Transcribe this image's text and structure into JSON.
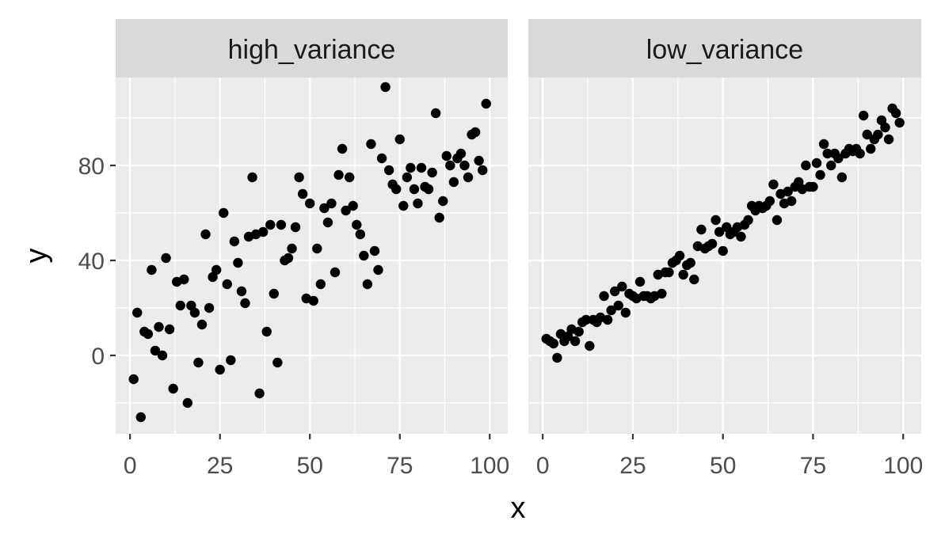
{
  "chart_data": {
    "type": "scatter",
    "xlabel": "x",
    "ylabel": "y",
    "xlim": [
      -4,
      105
    ],
    "ylim": [
      -33,
      117
    ],
    "x_ticks": [
      0,
      25,
      50,
      75,
      100
    ],
    "y_ticks": [
      0,
      40,
      80
    ],
    "grid": true,
    "legend": "none",
    "panel_background": "#ebebeb",
    "strip_background": "#d9d9d9",
    "point_color": "#000000",
    "facets": [
      {
        "strip_label": "high_variance",
        "points": [
          {
            "x": 1,
            "y": -10
          },
          {
            "x": 2,
            "y": 18
          },
          {
            "x": 3,
            "y": -26
          },
          {
            "x": 4,
            "y": 10
          },
          {
            "x": 5,
            "y": 9
          },
          {
            "x": 6,
            "y": 36
          },
          {
            "x": 7,
            "y": 2
          },
          {
            "x": 8,
            "y": 12
          },
          {
            "x": 9,
            "y": 0
          },
          {
            "x": 10,
            "y": 41
          },
          {
            "x": 11,
            "y": 11
          },
          {
            "x": 12,
            "y": -14
          },
          {
            "x": 13,
            "y": 31
          },
          {
            "x": 14,
            "y": 21
          },
          {
            "x": 15,
            "y": 32
          },
          {
            "x": 16,
            "y": -20
          },
          {
            "x": 17,
            "y": 21
          },
          {
            "x": 18,
            "y": 18
          },
          {
            "x": 19,
            "y": -3
          },
          {
            "x": 20,
            "y": 13
          },
          {
            "x": 21,
            "y": 51
          },
          {
            "x": 22,
            "y": 20
          },
          {
            "x": 23,
            "y": 33
          },
          {
            "x": 24,
            "y": 36
          },
          {
            "x": 25,
            "y": -6
          },
          {
            "x": 26,
            "y": 60
          },
          {
            "x": 27,
            "y": 30
          },
          {
            "x": 28,
            "y": -2
          },
          {
            "x": 29,
            "y": 48
          },
          {
            "x": 30,
            "y": 39
          },
          {
            "x": 31,
            "y": 27
          },
          {
            "x": 32,
            "y": 22
          },
          {
            "x": 33,
            "y": 50
          },
          {
            "x": 34,
            "y": 75
          },
          {
            "x": 35,
            "y": 51
          },
          {
            "x": 36,
            "y": -16
          },
          {
            "x": 37,
            "y": 52
          },
          {
            "x": 38,
            "y": 10
          },
          {
            "x": 39,
            "y": 55
          },
          {
            "x": 40,
            "y": 26
          },
          {
            "x": 41,
            "y": -3
          },
          {
            "x": 42,
            "y": 55
          },
          {
            "x": 43,
            "y": 40
          },
          {
            "x": 44,
            "y": 41
          },
          {
            "x": 45,
            "y": 45
          },
          {
            "x": 46,
            "y": 54
          },
          {
            "x": 47,
            "y": 75
          },
          {
            "x": 48,
            "y": 68
          },
          {
            "x": 49,
            "y": 24
          },
          {
            "x": 50,
            "y": 64
          },
          {
            "x": 51,
            "y": 23
          },
          {
            "x": 52,
            "y": 45
          },
          {
            "x": 53,
            "y": 30
          },
          {
            "x": 54,
            "y": 62
          },
          {
            "x": 55,
            "y": 56
          },
          {
            "x": 56,
            "y": 64
          },
          {
            "x": 57,
            "y": 35
          },
          {
            "x": 58,
            "y": 76
          },
          {
            "x": 59,
            "y": 87
          },
          {
            "x": 60,
            "y": 61
          },
          {
            "x": 61,
            "y": 75
          },
          {
            "x": 62,
            "y": 63
          },
          {
            "x": 63,
            "y": 55
          },
          {
            "x": 64,
            "y": 51
          },
          {
            "x": 65,
            "y": 42
          },
          {
            "x": 66,
            "y": 30
          },
          {
            "x": 67,
            "y": 89
          },
          {
            "x": 68,
            "y": 44
          },
          {
            "x": 69,
            "y": 36
          },
          {
            "x": 70,
            "y": 83
          },
          {
            "x": 71,
            "y": 113
          },
          {
            "x": 72,
            "y": 78
          },
          {
            "x": 73,
            "y": 72
          },
          {
            "x": 74,
            "y": 70
          },
          {
            "x": 75,
            "y": 91
          },
          {
            "x": 76,
            "y": 63
          },
          {
            "x": 77,
            "y": 75
          },
          {
            "x": 78,
            "y": 79
          },
          {
            "x": 79,
            "y": 70
          },
          {
            "x": 80,
            "y": 64
          },
          {
            "x": 81,
            "y": 79
          },
          {
            "x": 82,
            "y": 71
          },
          {
            "x": 83,
            "y": 70
          },
          {
            "x": 84,
            "y": 77
          },
          {
            "x": 85,
            "y": 102
          },
          {
            "x": 86,
            "y": 58
          },
          {
            "x": 87,
            "y": 65
          },
          {
            "x": 88,
            "y": 84
          },
          {
            "x": 89,
            "y": 80
          },
          {
            "x": 90,
            "y": 73
          },
          {
            "x": 91,
            "y": 83
          },
          {
            "x": 92,
            "y": 85
          },
          {
            "x": 93,
            "y": 80
          },
          {
            "x": 94,
            "y": 75
          },
          {
            "x": 95,
            "y": 93
          },
          {
            "x": 96,
            "y": 94
          },
          {
            "x": 97,
            "y": 82
          },
          {
            "x": 98,
            "y": 78
          },
          {
            "x": 99,
            "y": 106
          }
        ]
      },
      {
        "strip_label": "low_variance",
        "points": [
          {
            "x": 1,
            "y": 7
          },
          {
            "x": 2,
            "y": 6
          },
          {
            "x": 3,
            "y": 5
          },
          {
            "x": 4,
            "y": -1
          },
          {
            "x": 5,
            "y": 9
          },
          {
            "x": 6,
            "y": 6
          },
          {
            "x": 7,
            "y": 8
          },
          {
            "x": 8,
            "y": 11
          },
          {
            "x": 9,
            "y": 6
          },
          {
            "x": 10,
            "y": 10
          },
          {
            "x": 11,
            "y": 14
          },
          {
            "x": 12,
            "y": 15
          },
          {
            "x": 13,
            "y": 4
          },
          {
            "x": 14,
            "y": 15
          },
          {
            "x": 15,
            "y": 14
          },
          {
            "x": 16,
            "y": 16
          },
          {
            "x": 17,
            "y": 25
          },
          {
            "x": 18,
            "y": 15
          },
          {
            "x": 19,
            "y": 19
          },
          {
            "x": 20,
            "y": 27
          },
          {
            "x": 21,
            "y": 21
          },
          {
            "x": 22,
            "y": 29
          },
          {
            "x": 23,
            "y": 18
          },
          {
            "x": 24,
            "y": 26
          },
          {
            "x": 25,
            "y": 25
          },
          {
            "x": 26,
            "y": 24
          },
          {
            "x": 27,
            "y": 31
          },
          {
            "x": 28,
            "y": 25
          },
          {
            "x": 29,
            "y": 25
          },
          {
            "x": 30,
            "y": 24
          },
          {
            "x": 31,
            "y": 25
          },
          {
            "x": 32,
            "y": 34
          },
          {
            "x": 33,
            "y": 26
          },
          {
            "x": 34,
            "y": 35
          },
          {
            "x": 35,
            "y": 35
          },
          {
            "x": 36,
            "y": 39
          },
          {
            "x": 37,
            "y": 40
          },
          {
            "x": 38,
            "y": 42
          },
          {
            "x": 39,
            "y": 34
          },
          {
            "x": 40,
            "y": 38
          },
          {
            "x": 41,
            "y": 39
          },
          {
            "x": 42,
            "y": 32
          },
          {
            "x": 43,
            "y": 46
          },
          {
            "x": 44,
            "y": 53
          },
          {
            "x": 45,
            "y": 45
          },
          {
            "x": 46,
            "y": 46
          },
          {
            "x": 47,
            "y": 47
          },
          {
            "x": 48,
            "y": 57
          },
          {
            "x": 49,
            "y": 52
          },
          {
            "x": 50,
            "y": 44
          },
          {
            "x": 51,
            "y": 54
          },
          {
            "x": 52,
            "y": 51
          },
          {
            "x": 53,
            "y": 52
          },
          {
            "x": 54,
            "y": 54
          },
          {
            "x": 55,
            "y": 50
          },
          {
            "x": 56,
            "y": 55
          },
          {
            "x": 57,
            "y": 57
          },
          {
            "x": 58,
            "y": 63
          },
          {
            "x": 59,
            "y": 61
          },
          {
            "x": 60,
            "y": 63
          },
          {
            "x": 61,
            "y": 62
          },
          {
            "x": 62,
            "y": 63
          },
          {
            "x": 63,
            "y": 65
          },
          {
            "x": 64,
            "y": 72
          },
          {
            "x": 65,
            "y": 57
          },
          {
            "x": 66,
            "y": 68
          },
          {
            "x": 67,
            "y": 64
          },
          {
            "x": 68,
            "y": 69
          },
          {
            "x": 69,
            "y": 65
          },
          {
            "x": 70,
            "y": 71
          },
          {
            "x": 71,
            "y": 73
          },
          {
            "x": 72,
            "y": 70
          },
          {
            "x": 73,
            "y": 80
          },
          {
            "x": 74,
            "y": 71
          },
          {
            "x": 75,
            "y": 71
          },
          {
            "x": 76,
            "y": 81
          },
          {
            "x": 77,
            "y": 76
          },
          {
            "x": 78,
            "y": 89
          },
          {
            "x": 79,
            "y": 85
          },
          {
            "x": 80,
            "y": 80
          },
          {
            "x": 81,
            "y": 85
          },
          {
            "x": 82,
            "y": 83
          },
          {
            "x": 83,
            "y": 75
          },
          {
            "x": 84,
            "y": 85
          },
          {
            "x": 85,
            "y": 87
          },
          {
            "x": 86,
            "y": 86
          },
          {
            "x": 87,
            "y": 87
          },
          {
            "x": 88,
            "y": 85
          },
          {
            "x": 89,
            "y": 101
          },
          {
            "x": 90,
            "y": 93
          },
          {
            "x": 91,
            "y": 87
          },
          {
            "x": 92,
            "y": 91
          },
          {
            "x": 93,
            "y": 93
          },
          {
            "x": 94,
            "y": 99
          },
          {
            "x": 95,
            "y": 96
          },
          {
            "x": 96,
            "y": 91
          },
          {
            "x": 97,
            "y": 104
          },
          {
            "x": 98,
            "y": 102
          },
          {
            "x": 99,
            "y": 98
          }
        ]
      }
    ]
  }
}
